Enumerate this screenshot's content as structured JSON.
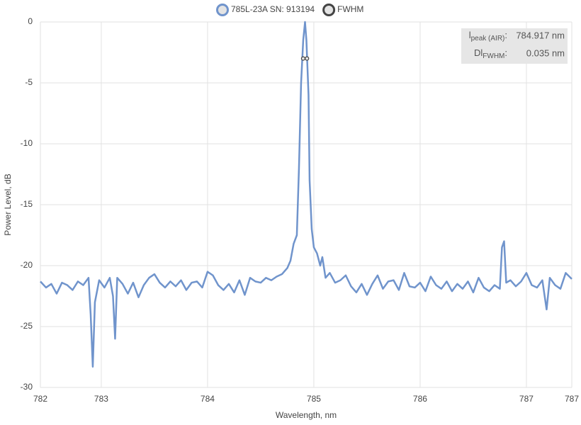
{
  "chart_data": {
    "type": "line",
    "x_label": "Wavelength, nm",
    "y_label": "Power Level, dB",
    "xlim": [
      782.427,
      787.427
    ],
    "ylim": [
      -30,
      0
    ],
    "xticks": [
      {
        "value": 782.427,
        "label": "782"
      },
      783,
      784,
      785,
      786,
      787,
      {
        "value": 787.427,
        "label": "787"
      }
    ],
    "yticks": [
      0,
      -5,
      -10,
      -15,
      -20,
      -25,
      -30
    ],
    "grid": true,
    "legend": "top",
    "annotations": [
      {
        "symbol": "l",
        "sub": "peak (AIR)",
        "sep": ":",
        "value": "784.917 nm"
      },
      {
        "symbol": "Dl",
        "sub": "FWHM",
        "sep": ":",
        "value": "0.035 nm"
      }
    ],
    "series": [
      {
        "name": "785L-23A SN: 913194",
        "color": "#7094cc",
        "marker_fill": "#e4e4e4",
        "x": [
          782.427,
          782.48,
          782.53,
          782.58,
          782.63,
          782.68,
          782.73,
          782.78,
          782.83,
          782.88,
          782.9,
          782.92,
          782.94,
          782.98,
          783.03,
          783.08,
          783.11,
          783.13,
          783.15,
          783.2,
          783.25,
          783.3,
          783.35,
          783.4,
          783.45,
          783.5,
          783.55,
          783.6,
          783.65,
          783.7,
          783.75,
          783.8,
          783.85,
          783.9,
          783.95,
          784.0,
          784.05,
          784.1,
          784.15,
          784.2,
          784.25,
          784.3,
          784.35,
          784.4,
          784.45,
          784.5,
          784.55,
          784.6,
          784.65,
          784.7,
          784.75,
          784.78,
          784.81,
          784.84,
          784.86,
          784.88,
          784.9,
          784.917,
          784.93,
          784.95,
          784.96,
          784.98,
          785.0,
          785.03,
          785.06,
          785.08,
          785.11,
          785.15,
          785.2,
          785.25,
          785.3,
          785.35,
          785.4,
          785.45,
          785.5,
          785.55,
          785.6,
          785.65,
          785.7,
          785.75,
          785.8,
          785.85,
          785.9,
          785.95,
          786.0,
          786.05,
          786.1,
          786.15,
          786.2,
          786.25,
          786.3,
          786.35,
          786.4,
          786.45,
          786.5,
          786.55,
          786.6,
          786.65,
          786.7,
          786.75,
          786.77,
          786.79,
          786.81,
          786.85,
          786.9,
          786.95,
          787.0,
          787.05,
          787.1,
          787.15,
          787.19,
          787.22,
          787.27,
          787.32,
          787.37,
          787.427
        ],
        "values": [
          -21.3,
          -21.8,
          -21.5,
          -22.3,
          -21.4,
          -21.6,
          -22.0,
          -21.3,
          -21.6,
          -21.0,
          -24.0,
          -28.3,
          -23.0,
          -21.2,
          -21.8,
          -21.0,
          -22.5,
          -26.0,
          -21.0,
          -21.5,
          -22.3,
          -21.4,
          -22.6,
          -21.6,
          -21.0,
          -20.7,
          -21.4,
          -21.8,
          -21.3,
          -21.7,
          -21.2,
          -22.0,
          -21.4,
          -21.3,
          -21.8,
          -20.5,
          -20.8,
          -21.6,
          -22.0,
          -21.5,
          -22.2,
          -21.2,
          -22.4,
          -21.0,
          -21.3,
          -21.4,
          -21.0,
          -21.2,
          -20.9,
          -20.7,
          -20.2,
          -19.6,
          -18.2,
          -17.5,
          -12.0,
          -5.0,
          -1.5,
          0,
          -1.5,
          -6.0,
          -13.0,
          -17.0,
          -18.5,
          -19.0,
          -20.0,
          -19.3,
          -21.0,
          -20.6,
          -21.4,
          -21.2,
          -20.8,
          -21.7,
          -22.2,
          -21.5,
          -22.4,
          -21.5,
          -20.8,
          -21.9,
          -21.3,
          -21.2,
          -22.0,
          -20.6,
          -21.7,
          -21.8,
          -21.4,
          -22.1,
          -20.9,
          -21.6,
          -21.9,
          -21.3,
          -22.1,
          -21.5,
          -21.9,
          -21.3,
          -22.2,
          -21.0,
          -21.8,
          -22.1,
          -21.6,
          -21.9,
          -18.5,
          -18.0,
          -21.4,
          -21.2,
          -21.7,
          -21.3,
          -20.6,
          -21.6,
          -21.8,
          -21.2,
          -23.6,
          -21.0,
          -21.6,
          -21.9,
          -20.6,
          -21.1
        ]
      },
      {
        "name": "FWHM",
        "color": "#444444",
        "marker_fill": "#e4e4e4",
        "markers_only": true,
        "x": [
          784.9,
          784.935
        ],
        "values": [
          -3,
          -3
        ]
      }
    ]
  }
}
